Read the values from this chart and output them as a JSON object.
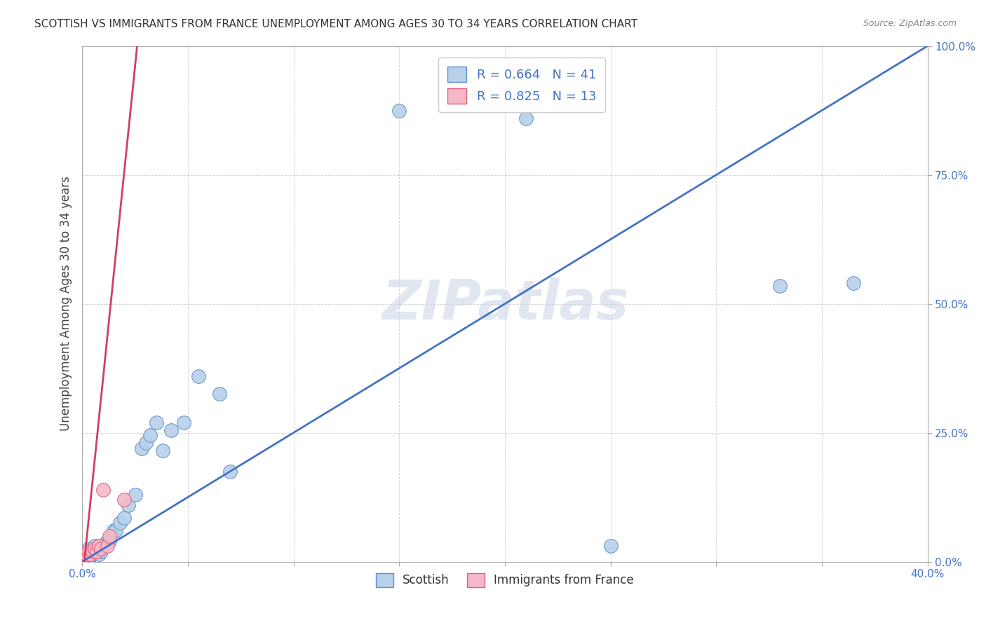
{
  "title": "SCOTTISH VS IMMIGRANTS FROM FRANCE UNEMPLOYMENT AMONG AGES 30 TO 34 YEARS CORRELATION CHART",
  "source": "Source: ZipAtlas.com",
  "ylabel": "Unemployment Among Ages 30 to 34 years",
  "xlim": [
    0,
    0.4
  ],
  "ylim": [
    0,
    1.0
  ],
  "xtick_positions": [
    0.0,
    0.05,
    0.1,
    0.15,
    0.2,
    0.25,
    0.3,
    0.35,
    0.4
  ],
  "xtick_labels": [
    "0.0%",
    "",
    "",
    "",
    "",
    "",
    "",
    "",
    "40.0%"
  ],
  "ytick_positions": [
    0.0,
    0.25,
    0.5,
    0.75,
    1.0
  ],
  "ytick_labels": [
    "0.0%",
    "25.0%",
    "50.0%",
    "75.0%",
    "100.0%"
  ],
  "scottish_x": [
    0.001,
    0.002,
    0.002,
    0.003,
    0.003,
    0.004,
    0.004,
    0.005,
    0.005,
    0.006,
    0.006,
    0.007,
    0.008,
    0.008,
    0.009,
    0.01,
    0.011,
    0.012,
    0.013,
    0.014,
    0.015,
    0.016,
    0.018,
    0.02,
    0.022,
    0.025,
    0.028,
    0.03,
    0.032,
    0.035,
    0.038,
    0.042,
    0.048,
    0.055,
    0.065,
    0.07,
    0.15,
    0.21,
    0.25,
    0.33,
    0.365
  ],
  "scottish_y": [
    0.005,
    0.01,
    0.02,
    0.015,
    0.025,
    0.01,
    0.02,
    0.015,
    0.025,
    0.02,
    0.03,
    0.025,
    0.015,
    0.03,
    0.02,
    0.03,
    0.035,
    0.04,
    0.04,
    0.05,
    0.06,
    0.06,
    0.075,
    0.085,
    0.11,
    0.13,
    0.22,
    0.23,
    0.245,
    0.27,
    0.215,
    0.255,
    0.27,
    0.36,
    0.325,
    0.175,
    0.875,
    0.86,
    0.03,
    0.535,
    0.54
  ],
  "france_x": [
    0.001,
    0.002,
    0.003,
    0.004,
    0.005,
    0.006,
    0.007,
    0.008,
    0.009,
    0.01,
    0.012,
    0.013,
    0.02
  ],
  "france_y": [
    0.01,
    0.015,
    0.02,
    0.015,
    0.02,
    0.025,
    0.02,
    0.03,
    0.025,
    0.14,
    0.03,
    0.05,
    0.12
  ],
  "scottish_R": 0.664,
  "scottish_N": 41,
  "france_R": 0.825,
  "france_N": 13,
  "scottish_color": "#b8d0ea",
  "france_color": "#f5b8c8",
  "scottish_edge_color": "#6090c8",
  "france_edge_color": "#e06080",
  "scottish_line_color": "#4472c4",
  "france_line_color": "#d04060",
  "tick_label_color": "#4472c4",
  "ylabel_color": "#444444",
  "title_color": "#333333",
  "source_color": "#888888",
  "watermark": "ZIPatlas",
  "watermark_color": "#ccd8e8",
  "background_color": "#ffffff",
  "grid_color": "#cccccc",
  "blue_line_slope": 2.5,
  "blue_line_intercept": 0.0,
  "pink_line_slope": 40.0,
  "pink_line_intercept": -0.04
}
